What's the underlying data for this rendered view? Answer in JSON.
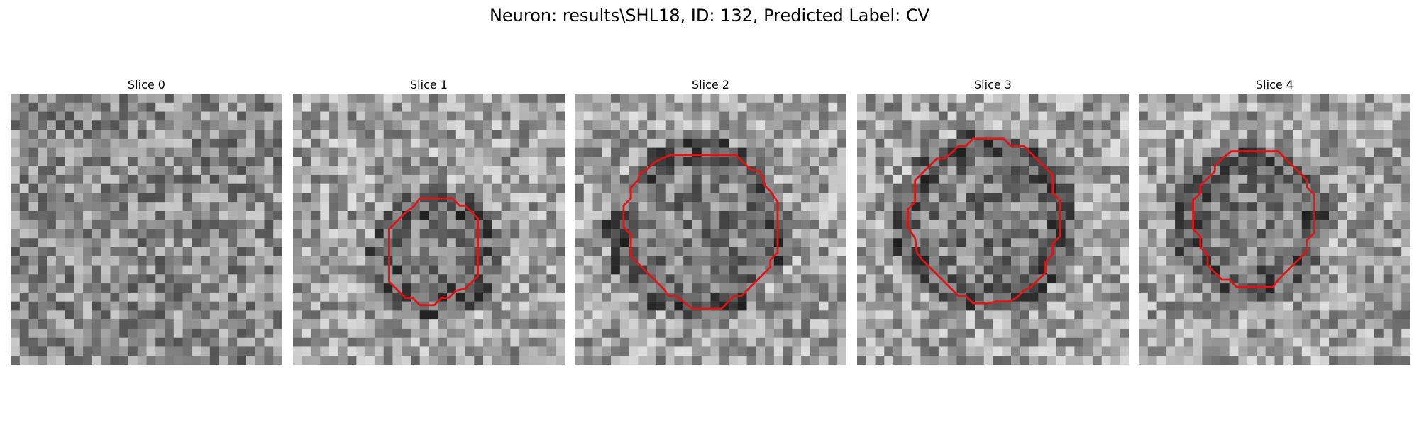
{
  "figure": {
    "title": "Neuron: results\\SHL18, ID: 132, Predicted Label: CV"
  },
  "panels": [
    {
      "title": "Slice 0",
      "contour": []
    },
    {
      "title": "Slice 1",
      "contour": [
        [
          15.0,
          11.6
        ],
        [
          17.6,
          11.6
        ],
        [
          18.4,
          12.4
        ],
        [
          19.0,
          12.4
        ],
        [
          20.4,
          13.8
        ],
        [
          20.4,
          20.2
        ],
        [
          19.8,
          20.8
        ],
        [
          19.0,
          21.6
        ],
        [
          18.0,
          21.8
        ],
        [
          17.2,
          22.6
        ],
        [
          16.4,
          22.6
        ],
        [
          15.6,
          23.4
        ],
        [
          14.0,
          23.4
        ],
        [
          13.2,
          22.6
        ],
        [
          12.4,
          22.6
        ],
        [
          10.6,
          20.8
        ],
        [
          10.6,
          15.0
        ],
        [
          11.6,
          14.0
        ],
        [
          12.4,
          13.2
        ],
        [
          13.4,
          12.4
        ],
        [
          14.0,
          11.6
        ]
      ]
    },
    {
      "title": "Slice 2",
      "contour": [
        [
          13.0,
          6.8
        ],
        [
          17.8,
          6.8
        ],
        [
          18.6,
          7.6
        ],
        [
          19.4,
          8.4
        ],
        [
          20.4,
          8.6
        ],
        [
          20.8,
          9.4
        ],
        [
          21.0,
          10.2
        ],
        [
          21.6,
          10.8
        ],
        [
          22.4,
          12.0
        ],
        [
          22.4,
          17.6
        ],
        [
          21.6,
          18.4
        ],
        [
          21.6,
          19.2
        ],
        [
          20.0,
          20.8
        ],
        [
          19.2,
          21.6
        ],
        [
          18.4,
          22.4
        ],
        [
          17.6,
          22.4
        ],
        [
          16.8,
          23.2
        ],
        [
          16.2,
          23.8
        ],
        [
          13.0,
          23.8
        ],
        [
          12.2,
          23.2
        ],
        [
          11.2,
          22.4
        ],
        [
          10.4,
          22.4
        ],
        [
          9.8,
          21.6
        ],
        [
          9.0,
          20.8
        ],
        [
          8.0,
          19.8
        ],
        [
          7.2,
          19.0
        ],
        [
          6.2,
          18.0
        ],
        [
          6.2,
          15.6
        ],
        [
          5.4,
          14.8
        ],
        [
          5.4,
          12.4
        ],
        [
          6.2,
          11.6
        ],
        [
          6.2,
          10.4
        ],
        [
          7.0,
          9.6
        ],
        [
          7.2,
          8.8
        ],
        [
          8.0,
          8.4
        ],
        [
          8.8,
          7.6
        ],
        [
          9.6,
          7.2
        ],
        [
          10.6,
          6.8
        ]
      ]
    },
    {
      "title": "Slice 3",
      "contour": [
        [
          14.4,
          5.0
        ],
        [
          16.2,
          5.0
        ],
        [
          17.0,
          5.8
        ],
        [
          18.4,
          5.8
        ],
        [
          19.2,
          6.6
        ],
        [
          20.0,
          7.4
        ],
        [
          20.8,
          8.2
        ],
        [
          21.6,
          9.0
        ],
        [
          21.6,
          11.0
        ],
        [
          22.4,
          11.8
        ],
        [
          22.4,
          15.8
        ],
        [
          21.6,
          16.6
        ],
        [
          21.6,
          17.8
        ],
        [
          20.8,
          18.6
        ],
        [
          20.8,
          19.8
        ],
        [
          20.0,
          20.6
        ],
        [
          19.2,
          21.4
        ],
        [
          18.4,
          21.8
        ],
        [
          17.6,
          22.6
        ],
        [
          16.8,
          23.0
        ],
        [
          15.4,
          23.0
        ],
        [
          14.4,
          23.2
        ],
        [
          12.8,
          23.2
        ],
        [
          12.0,
          22.4
        ],
        [
          11.2,
          22.4
        ],
        [
          10.4,
          21.6
        ],
        [
          9.6,
          20.8
        ],
        [
          8.8,
          20.0
        ],
        [
          8.0,
          19.2
        ],
        [
          7.2,
          18.4
        ],
        [
          6.6,
          17.6
        ],
        [
          6.4,
          16.0
        ],
        [
          5.6,
          14.8
        ],
        [
          5.6,
          12.8
        ],
        [
          6.4,
          12.0
        ],
        [
          6.4,
          9.6
        ],
        [
          7.2,
          8.8
        ],
        [
          8.0,
          8.0
        ],
        [
          8.8,
          7.2
        ],
        [
          9.6,
          7.2
        ],
        [
          10.4,
          6.6
        ],
        [
          11.2,
          5.8
        ],
        [
          12.0,
          5.8
        ],
        [
          12.8,
          5.0
        ]
      ]
    },
    {
      "title": "Slice 4",
      "contour": [
        [
          10.2,
          6.4
        ],
        [
          15.4,
          6.4
        ],
        [
          16.2,
          7.2
        ],
        [
          17.0,
          8.0
        ],
        [
          17.8,
          8.8
        ],
        [
          18.6,
          9.6
        ],
        [
          18.6,
          10.4
        ],
        [
          19.4,
          11.2
        ],
        [
          19.4,
          15.4
        ],
        [
          18.6,
          16.2
        ],
        [
          18.6,
          17.4
        ],
        [
          17.8,
          18.2
        ],
        [
          17.0,
          19.0
        ],
        [
          16.2,
          19.8
        ],
        [
          15.4,
          20.6
        ],
        [
          14.8,
          21.4
        ],
        [
          10.8,
          21.4
        ],
        [
          10.0,
          20.6
        ],
        [
          9.2,
          20.6
        ],
        [
          8.4,
          19.8
        ],
        [
          7.6,
          19.0
        ],
        [
          7.6,
          17.8
        ],
        [
          6.8,
          17.0
        ],
        [
          6.8,
          15.8
        ],
        [
          6.0,
          15.0
        ],
        [
          6.0,
          11.8
        ],
        [
          6.8,
          11.0
        ],
        [
          6.8,
          10.2
        ],
        [
          7.6,
          9.4
        ],
        [
          8.4,
          8.6
        ],
        [
          8.4,
          8.0
        ],
        [
          9.2,
          7.2
        ]
      ]
    }
  ],
  "style": {
    "contour_color": "#e01414",
    "colormap": "gray"
  }
}
